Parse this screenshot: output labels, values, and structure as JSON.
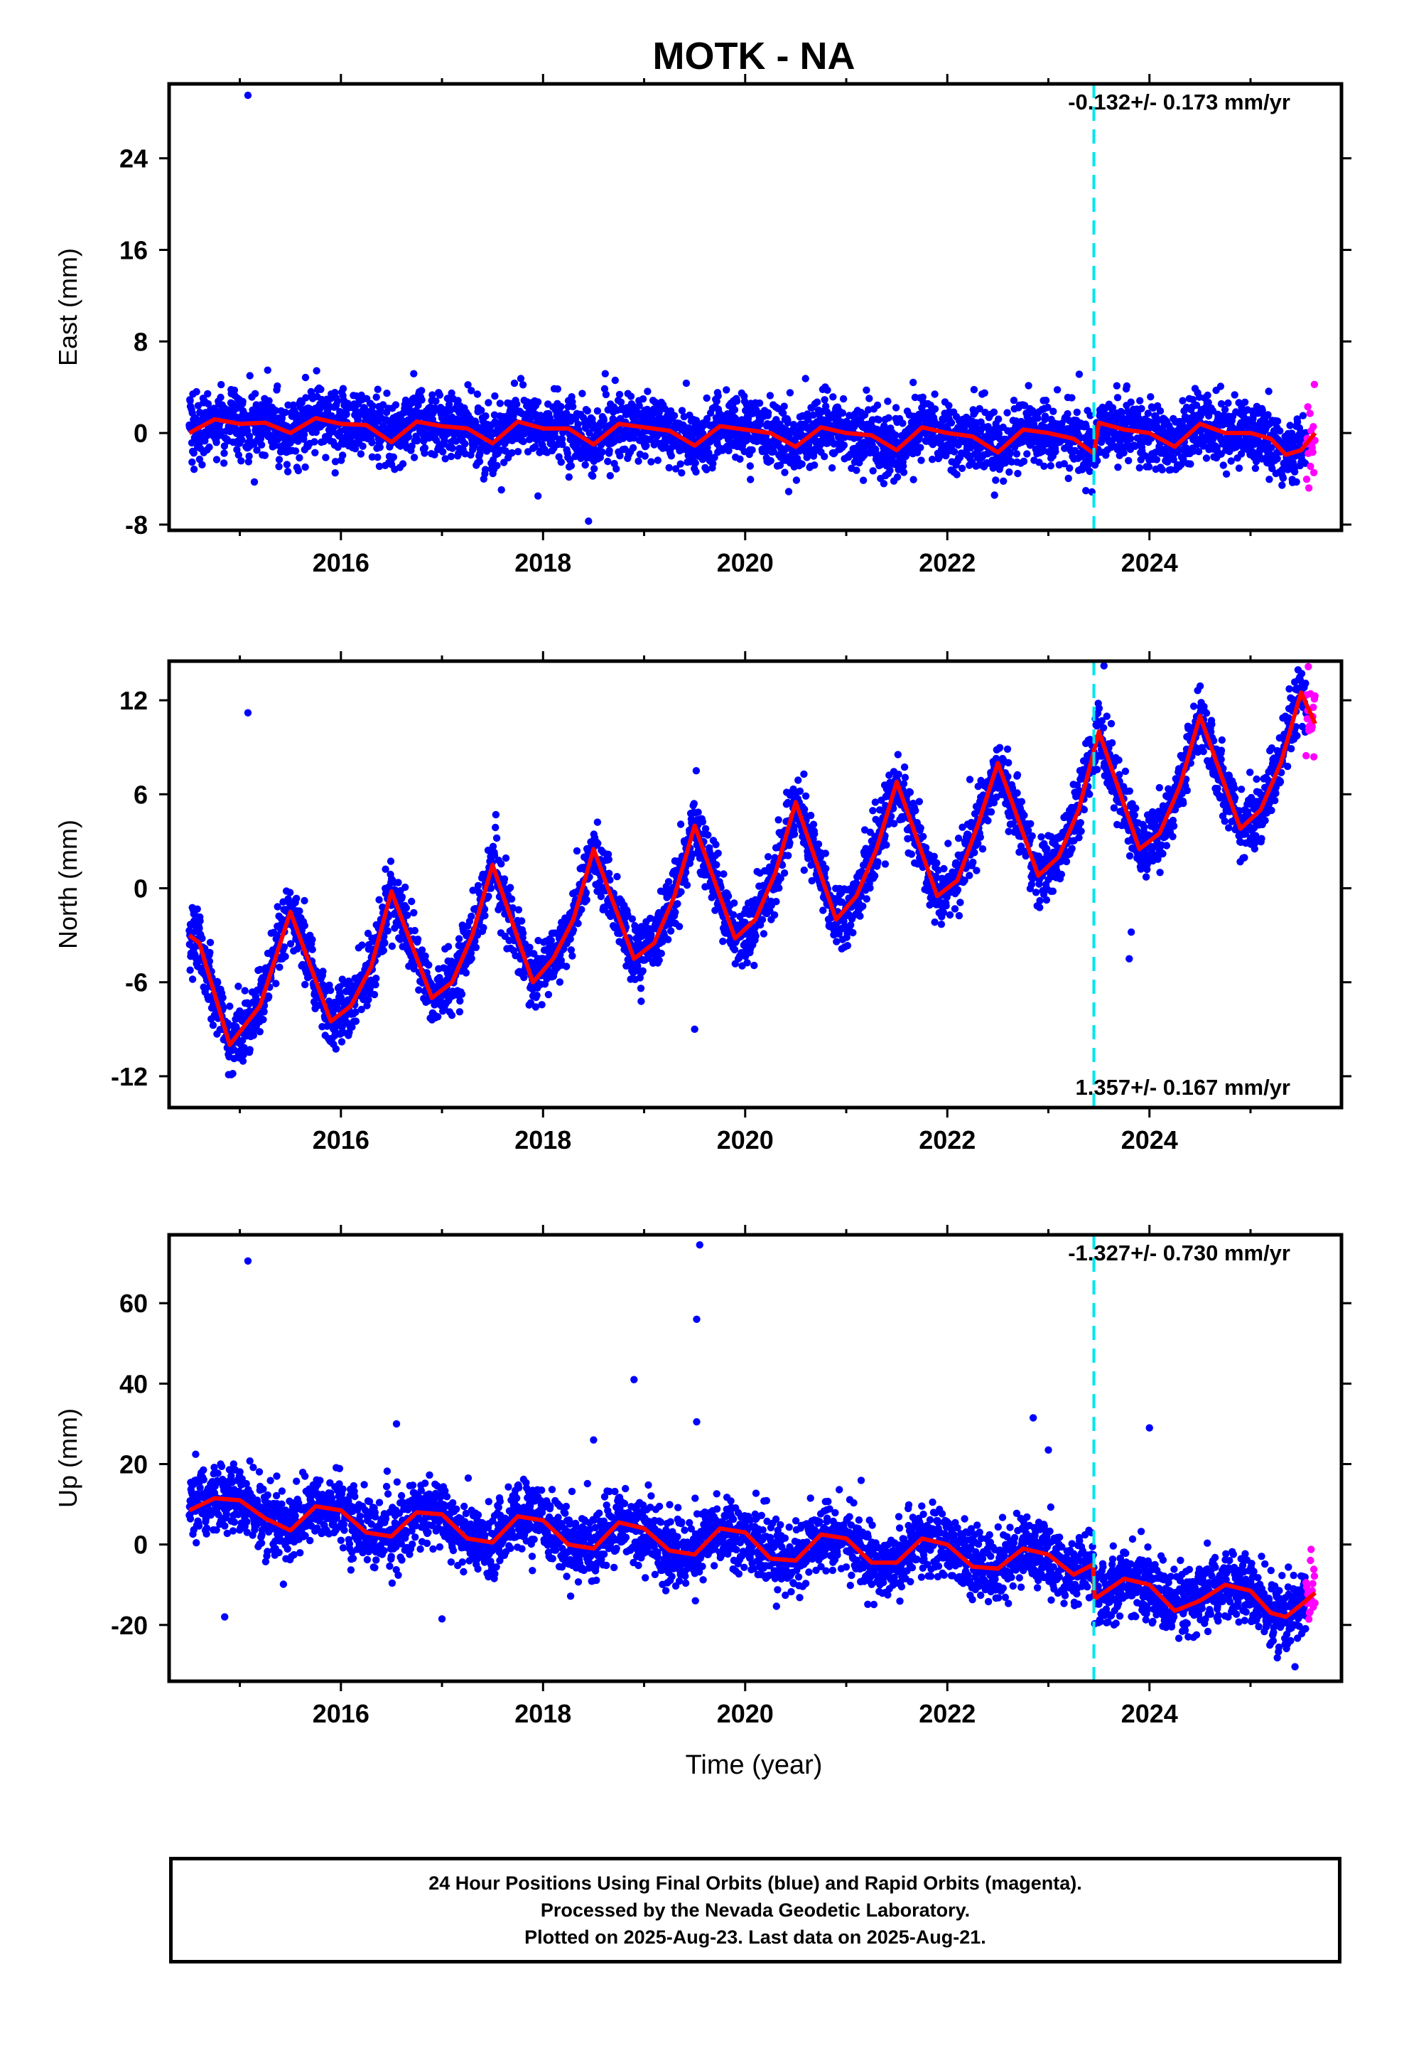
{
  "title": "MOTK - NA",
  "xlabel": "Time (year)",
  "colors": {
    "final_points": "#0000ff",
    "rapid_points": "#ff00ff",
    "model_line": "#ff0000",
    "event_line": "#00e5ee"
  },
  "event_marker_year": 2023.45,
  "chart_data": [
    {
      "type": "scatter",
      "ylabel": "East (mm)",
      "rate_label": "-0.132+/- 0.173 mm/yr",
      "rate_position": "top-right",
      "xlim": [
        2014.3,
        2025.9
      ],
      "ylim": [
        -8.5,
        30.5
      ],
      "xticks": [
        2016,
        2018,
        2020,
        2022,
        2024
      ],
      "yticks": [
        -8,
        0,
        8,
        16,
        24
      ],
      "start_year": 2014.5,
      "final_end_year": 2025.55,
      "rapid_start_year": 2025.55,
      "end_year": 2025.64,
      "trend": {
        "start": 0.6,
        "end": -0.9
      },
      "seasonal": {
        "amplitude": 0.9,
        "peak_phase": 0.5
      },
      "scatter_sd": 1.4,
      "outliers": [
        {
          "x": 2015.08,
          "y": 29.5
        },
        {
          "x": 2018.45,
          "y": -7.7
        },
        {
          "x": 2017.95,
          "y": -5.5
        }
      ],
      "model_x": [
        2014.5,
        2014.75,
        2015.0,
        2015.25,
        2015.5,
        2015.75,
        2016.0,
        2016.25,
        2016.5,
        2016.75,
        2017.0,
        2017.25,
        2017.5,
        2017.75,
        2018.0,
        2018.25,
        2018.5,
        2018.75,
        2019.0,
        2019.25,
        2019.5,
        2019.75,
        2020.0,
        2020.25,
        2020.5,
        2020.75,
        2021.0,
        2021.25,
        2021.5,
        2021.75,
        2022.0,
        2022.25,
        2022.5,
        2022.75,
        2023.0,
        2023.25,
        2023.45,
        2023.5,
        2023.75,
        2024.0,
        2024.25,
        2024.5,
        2024.75,
        2025.0,
        2025.2,
        2025.35,
        2025.5,
        2025.64
      ],
      "model_y": [
        0.0,
        1.2,
        0.8,
        0.9,
        0.0,
        1.3,
        0.8,
        0.7,
        -0.8,
        1.0,
        0.6,
        0.4,
        -0.9,
        1.0,
        0.4,
        0.4,
        -1.0,
        0.8,
        0.5,
        0.2,
        -1.1,
        0.6,
        0.3,
        0.0,
        -1.2,
        0.5,
        0.0,
        -0.2,
        -1.5,
        0.5,
        0.0,
        -0.3,
        -1.7,
        0.3,
        0.0,
        -0.5,
        -1.8,
        0.9,
        0.3,
        0.0,
        -1.2,
        0.8,
        0.0,
        0.0,
        -0.5,
        -1.9,
        -1.5,
        0.0
      ]
    },
    {
      "type": "scatter",
      "ylabel": "North (mm)",
      "rate_label": "1.357+/- 0.167 mm/yr",
      "rate_position": "bottom-right",
      "xlim": [
        2014.3,
        2025.9
      ],
      "ylim": [
        -14,
        14.5
      ],
      "xticks": [
        2016,
        2018,
        2020,
        2022,
        2024
      ],
      "yticks": [
        -12,
        -6,
        0,
        6,
        12
      ],
      "start_year": 2014.5,
      "final_end_year": 2025.55,
      "rapid_start_year": 2025.55,
      "end_year": 2025.64,
      "trend": {
        "start": -5.5,
        "end": 8.5
      },
      "seasonal": {
        "amplitude": 4.0,
        "peak_phase": 0.5
      },
      "scatter_sd": 1.0,
      "outliers": [
        {
          "x": 2015.08,
          "y": 11.2
        },
        {
          "x": 2019.5,
          "y": -9.0
        },
        {
          "x": 2023.8,
          "y": -4.5
        },
        {
          "x": 2023.82,
          "y": -2.8
        },
        {
          "x": 2023.55,
          "y": 14.2
        }
      ],
      "model_x": [
        2014.5,
        2014.6,
        2014.9,
        2015.2,
        2015.5,
        2015.9,
        2016.1,
        2016.3,
        2016.5,
        2016.9,
        2017.1,
        2017.3,
        2017.5,
        2017.9,
        2018.1,
        2018.3,
        2018.5,
        2018.9,
        2019.1,
        2019.3,
        2019.5,
        2019.9,
        2020.1,
        2020.3,
        2020.5,
        2020.9,
        2021.1,
        2021.3,
        2021.5,
        2021.9,
        2022.1,
        2022.3,
        2022.5,
        2022.9,
        2023.1,
        2023.3,
        2023.5,
        2023.9,
        2024.1,
        2024.3,
        2024.5,
        2024.9,
        2025.1,
        2025.3,
        2025.5,
        2025.64
      ],
      "model_y": [
        -3.0,
        -3.5,
        -10.0,
        -7.5,
        -1.5,
        -8.5,
        -7.5,
        -5.0,
        -0.2,
        -7.0,
        -6.0,
        -3.0,
        1.5,
        -6.0,
        -4.5,
        -2.0,
        2.5,
        -4.5,
        -3.5,
        -0.5,
        4.0,
        -3.2,
        -2.0,
        1.0,
        5.5,
        -2.0,
        -0.5,
        2.5,
        6.8,
        -0.5,
        0.5,
        4.0,
        8.0,
        0.8,
        2.0,
        5.0,
        10.0,
        2.5,
        3.5,
        6.5,
        11.0,
        3.8,
        5.0,
        8.0,
        12.5,
        10.5
      ]
    },
    {
      "type": "scatter",
      "ylabel": "Up (mm)",
      "rate_label": "-1.327+/- 0.730 mm/yr",
      "rate_position": "top-right",
      "xlim": [
        2014.3,
        2025.9
      ],
      "ylim": [
        -34,
        77
      ],
      "xticks": [
        2016,
        2018,
        2020,
        2022,
        2024
      ],
      "yticks": [
        -20,
        0,
        20,
        40,
        60
      ],
      "start_year": 2014.5,
      "final_end_year": 2025.55,
      "rapid_start_year": 2025.55,
      "end_year": 2025.64,
      "trend": {
        "start": 8.0,
        "end": -15.0
      },
      "seasonal": {
        "amplitude": 4.5,
        "peak_phase": 0.75
      },
      "scatter_sd": 4.2,
      "outliers": [
        {
          "x": 2015.08,
          "y": 70.5
        },
        {
          "x": 2019.55,
          "y": 74.5
        },
        {
          "x": 2019.52,
          "y": 56.0
        },
        {
          "x": 2018.9,
          "y": 41.0
        },
        {
          "x": 2019.52,
          "y": 30.5
        },
        {
          "x": 2018.5,
          "y": 26.0
        },
        {
          "x": 2022.85,
          "y": 31.5
        },
        {
          "x": 2023.0,
          "y": 23.5
        },
        {
          "x": 2024.0,
          "y": 29.0
        },
        {
          "x": 2016.55,
          "y": 30.0
        },
        {
          "x": 2014.85,
          "y": -18.0
        },
        {
          "x": 2017.0,
          "y": -18.5
        }
      ],
      "model_x": [
        2014.5,
        2014.75,
        2015.0,
        2015.25,
        2015.5,
        2015.75,
        2016.0,
        2016.25,
        2016.5,
        2016.75,
        2017.0,
        2017.25,
        2017.5,
        2017.75,
        2018.0,
        2018.25,
        2018.5,
        2018.75,
        2019.0,
        2019.25,
        2019.5,
        2019.75,
        2020.0,
        2020.25,
        2020.5,
        2020.75,
        2021.0,
        2021.25,
        2021.5,
        2021.75,
        2022.0,
        2022.25,
        2022.5,
        2022.75,
        2023.0,
        2023.25,
        2023.44,
        2023.46,
        2023.75,
        2024.0,
        2024.25,
        2024.5,
        2024.75,
        2025.0,
        2025.2,
        2025.35,
        2025.5,
        2025.64
      ],
      "model_y": [
        8.5,
        11.5,
        11.0,
        6.5,
        3.5,
        9.5,
        8.5,
        3.0,
        2.0,
        8.0,
        7.5,
        1.5,
        0.5,
        7.0,
        6.0,
        0.0,
        -1.0,
        5.5,
        4.0,
        -1.5,
        -2.5,
        4.0,
        3.0,
        -3.5,
        -4.0,
        2.5,
        1.5,
        -4.5,
        -4.5,
        1.5,
        0.0,
        -5.5,
        -6.0,
        -1.0,
        -2.5,
        -7.5,
        -5.0,
        -13.5,
        -8.5,
        -10.0,
        -16.5,
        -14.0,
        -10.0,
        -11.5,
        -17.0,
        -18.0,
        -15.0,
        -12.0
      ]
    }
  ],
  "footer": {
    "line1": "24 Hour Positions Using Final Orbits (blue) and Rapid Orbits (magenta).",
    "line2": "Processed by the Nevada Geodetic Laboratory.",
    "line3": "Plotted on 2025-Aug-23. Last data on 2025-Aug-21."
  }
}
